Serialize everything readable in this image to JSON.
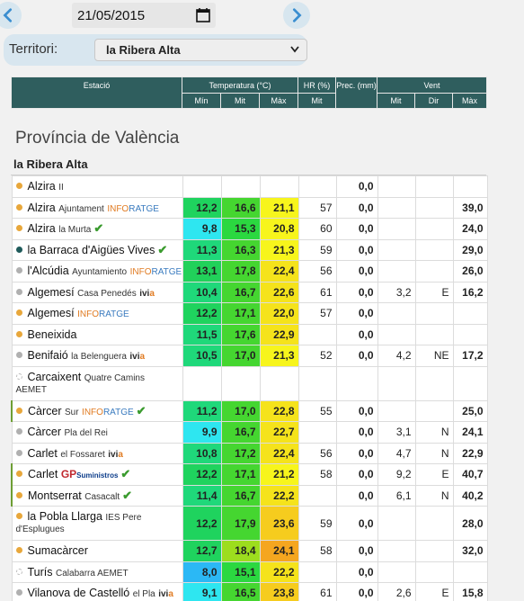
{
  "date": "21/05/2015",
  "territory": {
    "label": "Territori:",
    "selected": "la Ribera Alta"
  },
  "header": {
    "estacio": "Estació",
    "temperatura": "Temperatura (°C)",
    "hr": "HR (%)",
    "prec": "Prec. (mm)",
    "vent": "Vent",
    "min": "Mín",
    "mit": "Mit",
    "max": "Màx",
    "hr_mit": "Mit",
    "vent_mit": "Mit",
    "vent_dir": "Dir",
    "vent_max": "Màx"
  },
  "province": "Província de València",
  "territory_title": "la Ribera Alta",
  "colors": {
    "header_bg": "#2f5e5e",
    "cyan": "#35e8f0",
    "green": "#1ed47a",
    "lime": "#45d840",
    "yellow": "#f5f51a",
    "orange": "#f5b820"
  },
  "rows": [
    {
      "name": "Alzira",
      "sub": "II",
      "dot": "#e8a73b",
      "min": "",
      "mit": "",
      "max": "",
      "hr": "",
      "prec": "0,0",
      "vmit": "",
      "vdir": "",
      "vmax": ""
    },
    {
      "name": "Alzira",
      "sub": "Ajuntament",
      "tag": "INFORATGE",
      "dot": "#e8a73b",
      "min": "12,2",
      "mit": "16,6",
      "max": "21,1",
      "hr": "57",
      "prec": "0,0",
      "vmit": "",
      "vdir": "",
      "vmax": "39,0"
    },
    {
      "name": "Alzira",
      "sub": "la Murta",
      "check": true,
      "dot": "#e8a73b",
      "min": "9,8",
      "mit": "15,3",
      "max": "20,8",
      "hr": "60",
      "prec": "0,0",
      "vmit": "",
      "vdir": "",
      "vmax": "24,0"
    },
    {
      "name": "la Barraca d'Aigües Vives",
      "check": true,
      "dot": "#1e5a5a",
      "min": "11,3",
      "mit": "16,3",
      "max": "21,3",
      "hr": "59",
      "prec": "0,0",
      "vmit": "",
      "vdir": "",
      "vmax": "29,0"
    },
    {
      "name": "l'Alcúdia",
      "sub": "Ayuntamiento",
      "tag": "INFORATGE",
      "dot": "#b0b0b0",
      "min": "13,1",
      "mit": "17,8",
      "max": "22,4",
      "hr": "56",
      "prec": "0,0",
      "vmit": "",
      "vdir": "",
      "vmax": "26,0"
    },
    {
      "name": "Algemesí",
      "sub": "Casa Penedés",
      "ivi": "ivia",
      "dot": "#b0b0b0",
      "min": "10,4",
      "mit": "16,7",
      "max": "22,6",
      "hr": "61",
      "prec": "0,0",
      "vmit": "3,2",
      "vdir": "E",
      "vmax": "16,2"
    },
    {
      "name": "Algemesí",
      "tag": "INFORATGE",
      "dot": "#e8a73b",
      "min": "12,2",
      "mit": "17,1",
      "max": "22,0",
      "hr": "57",
      "prec": "0,0",
      "vmit": "",
      "vdir": "",
      "vmax": ""
    },
    {
      "name": "Beneixida",
      "dot": "#e8a73b",
      "min": "11,5",
      "mit": "17,6",
      "max": "22,9",
      "hr": "",
      "prec": "0,0",
      "vmit": "",
      "vdir": "",
      "vmax": ""
    },
    {
      "name": "Benifaió",
      "sub": "la Belenguera",
      "ivi": "ivia",
      "dot": "#b0b0b0",
      "min": "10,5",
      "mit": "17,0",
      "max": "21,3",
      "hr": "52",
      "prec": "0,0",
      "vmit": "4,2",
      "vdir": "NE",
      "vmax": "17,2"
    },
    {
      "name": "Carcaixent",
      "sub": "Quatre Camins",
      "line2": "AEMET",
      "dashed": true,
      "min": "",
      "mit": "",
      "max": "",
      "hr": "",
      "prec": "",
      "vmit": "",
      "vdir": "",
      "vmax": ""
    },
    {
      "name": "Càrcer",
      "sub": "Sur",
      "tag": "INFORATGE",
      "check": true,
      "dot": "#e8a73b",
      "min": "11,2",
      "mit": "17,0",
      "max": "22,8",
      "hr": "55",
      "prec": "0,0",
      "vmit": "",
      "vdir": "",
      "vmax": "25,0"
    },
    {
      "name": "Càrcer",
      "sub": "Pla del Rei",
      "dot": "#b0b0b0",
      "min": "9,9",
      "mit": "16,7",
      "max": "22,7",
      "hr": "",
      "prec": "0,0",
      "vmit": "3,1",
      "vdir": "N",
      "vmax": "24,1"
    },
    {
      "name": "Carlet",
      "sub": "el Fossaret",
      "ivi": "ivia",
      "dot": "#b0b0b0",
      "min": "10,8",
      "mit": "17,2",
      "max": "22,4",
      "hr": "56",
      "prec": "0,0",
      "vmit": "4,7",
      "vdir": "N",
      "vmax": "22,9"
    },
    {
      "name": "Carlet",
      "gp": "GP",
      "gps": "Suministros",
      "check": true,
      "dot": "#e8a73b",
      "min": "12,2",
      "mit": "17,1",
      "max": "21,2",
      "hr": "58",
      "prec": "0,0",
      "vmit": "9,2",
      "vdir": "E",
      "vmax": "40,7"
    },
    {
      "name": "Montserrat",
      "sub": "Casacalt",
      "check": true,
      "dot": "#e8a73b",
      "min": "11,4",
      "mit": "16,7",
      "max": "22,2",
      "hr": "",
      "prec": "0,0",
      "vmit": "6,1",
      "vdir": "N",
      "vmax": "40,2"
    },
    {
      "name": "la Pobla Llarga",
      "sub": "IES Pere",
      "line2": "d'Esplugues",
      "dot": "#e8a73b",
      "min": "12,2",
      "mit": "17,9",
      "max": "23,6",
      "hr": "59",
      "prec": "0,0",
      "vmit": "",
      "vdir": "",
      "vmax": "28,0"
    },
    {
      "name": "Sumacàrcer",
      "dot": "#e8a73b",
      "min": "12,7",
      "mit": "18,4",
      "max": "24,1",
      "hr": "58",
      "prec": "0,0",
      "vmit": "",
      "vdir": "",
      "vmax": "32,0"
    },
    {
      "name": "Turís",
      "sub": "Calabarra AEMET",
      "dashed": true,
      "min": "8,0",
      "mit": "15,1",
      "max": "22,2",
      "hr": "",
      "prec": "0,0",
      "vmit": "",
      "vdir": "",
      "vmax": ""
    },
    {
      "name": "Vilanova de Castelló",
      "sub": "el Pla",
      "ivi": "ivia",
      "dot": "#b0b0b0",
      "min": "9,1",
      "mit": "16,5",
      "max": "23,8",
      "hr": "61",
      "prec": "0,0",
      "vmit": "2,6",
      "vdir": "E",
      "vmax": "15,8"
    }
  ]
}
